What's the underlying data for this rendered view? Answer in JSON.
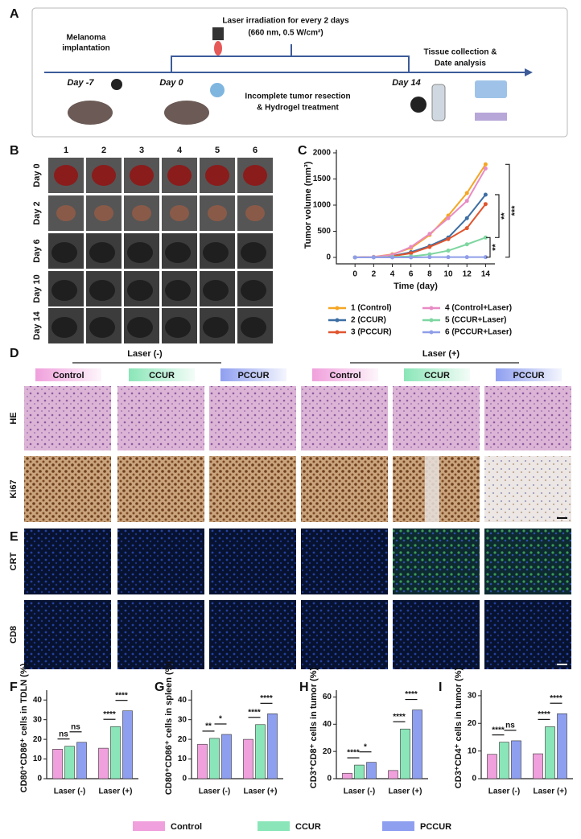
{
  "panel_labels": [
    "A",
    "B",
    "C",
    "D",
    "E",
    "F",
    "G",
    "H",
    "I"
  ],
  "timeline": {
    "laser_note": [
      "Laser irradiation for every 2 days",
      "(660 nm, 0.5 W/cm²)"
    ],
    "implant": [
      "Melanoma",
      "implantation"
    ],
    "days": [
      "Day -7",
      "Day 0",
      "Day 14"
    ],
    "treatment": [
      "Incomplete tumor resection",
      "& Hydrogel treatment"
    ],
    "analysis": [
      "Tissue collection &",
      "Date analysis"
    ]
  },
  "panel_b": {
    "columns": [
      "1",
      "2",
      "3",
      "4",
      "5",
      "6"
    ],
    "rows": [
      "Day 0",
      "Day 2",
      "Day 6",
      "Day 10",
      "Day 14"
    ]
  },
  "panel_d": {
    "groups": [
      "Laser (-)",
      "Laser (+)"
    ],
    "headers": [
      "Control",
      "CCUR",
      "PCCUR",
      "Control",
      "CCUR",
      "PCCUR"
    ],
    "rows": [
      "HE",
      "Ki67"
    ]
  },
  "panel_e": {
    "rows": [
      "CRT",
      "CD8"
    ]
  },
  "legend": [
    {
      "name": "Control",
      "color": "#f0a0dc"
    },
    {
      "name": "CCUR",
      "color": "#8ae6b8"
    },
    {
      "name": "PCCUR",
      "color": "#8f9ff0"
    }
  ],
  "chart_data": [
    {
      "type": "line",
      "y_label": "Tumor volume (mm³)",
      "x_label": "Time (day)",
      "x": [
        0,
        2,
        4,
        6,
        8,
        10,
        12,
        14
      ],
      "series": [
        {
          "name": "1 (Control)",
          "color": "#f5a623",
          "values": [
            0,
            10,
            60,
            180,
            430,
            800,
            1230,
            1780
          ]
        },
        {
          "name": "2 (CCUR)",
          "color": "#3d6fa3",
          "values": [
            0,
            5,
            30,
            100,
            220,
            380,
            750,
            1200
          ]
        },
        {
          "name": "3 (PCCUR)",
          "color": "#e0552e",
          "values": [
            0,
            5,
            25,
            80,
            200,
            350,
            560,
            1020
          ]
        },
        {
          "name": "4 (Control+Laser)",
          "color": "#e88bc4",
          "values": [
            0,
            10,
            50,
            200,
            450,
            750,
            1080,
            1700
          ]
        },
        {
          "name": "5 (CCUR+Laser)",
          "color": "#7ed6a0",
          "values": [
            0,
            2,
            10,
            20,
            60,
            130,
            250,
            380
          ]
        },
        {
          "name": "6 (PCCUR+Laser)",
          "color": "#8f9ee8",
          "values": [
            0,
            0,
            0,
            0,
            5,
            5,
            5,
            5
          ]
        }
      ],
      "xlim": [
        -2,
        15
      ],
      "ylim": [
        0,
        2000
      ],
      "xticks": [
        0,
        2,
        4,
        6,
        8,
        10,
        12,
        14
      ],
      "yticks": [
        0,
        500,
        1000,
        1500,
        2000
      ],
      "annotations": [
        "***",
        "**",
        "**"
      ]
    },
    {
      "type": "bar",
      "y_label": "CD80⁺CD86⁺ cells in TDLN (%)",
      "categories": [
        "Laser (-)",
        "Laser (+)"
      ],
      "series": [
        {
          "values": [
            15,
            15.5
          ]
        },
        {
          "values": [
            16.5,
            26.5
          ]
        },
        {
          "values": [
            18.5,
            34.5
          ]
        }
      ],
      "ylim": [
        0,
        45
      ],
      "yticks": [
        0,
        10,
        20,
        30,
        40
      ],
      "significance": [
        [
          "ns",
          "ns"
        ],
        [
          "****",
          "****"
        ]
      ]
    },
    {
      "type": "bar",
      "y_label": "CD80⁺CD86⁺ cells in spleen (%)",
      "categories": [
        "Laser (-)",
        "Laser (+)"
      ],
      "series": [
        {
          "values": [
            17.5,
            20
          ]
        },
        {
          "values": [
            20.5,
            27.5
          ]
        },
        {
          "values": [
            22.5,
            33
          ]
        }
      ],
      "ylim": [
        0,
        45
      ],
      "yticks": [
        0,
        10,
        20,
        30,
        40
      ],
      "significance": [
        [
          "**",
          "*"
        ],
        [
          "****",
          "****"
        ]
      ]
    },
    {
      "type": "bar",
      "y_label": "CD3⁺CD8⁺ cells in tumor (%)",
      "categories": [
        "Laser (-)",
        "Laser (+)"
      ],
      "series": [
        {
          "values": [
            4,
            6
          ]
        },
        {
          "values": [
            10,
            36.5
          ]
        },
        {
          "values": [
            12,
            50.5
          ]
        }
      ],
      "ylim": [
        0,
        65
      ],
      "yticks": [
        0,
        20,
        40,
        60
      ],
      "significance": [
        [
          "****",
          "*"
        ],
        [
          "****",
          "****"
        ]
      ]
    },
    {
      "type": "bar",
      "y_label": "CD3⁺CD4⁺ cells in tumor (%)",
      "categories": [
        "Laser (-)",
        "Laser (+)"
      ],
      "series": [
        {
          "values": [
            8.8,
            9
          ]
        },
        {
          "values": [
            13.2,
            18.8
          ]
        },
        {
          "values": [
            13.7,
            23.5
          ]
        }
      ],
      "ylim": [
        0,
        32
      ],
      "yticks": [
        0,
        10,
        20,
        30
      ],
      "significance": [
        [
          "****",
          "ns"
        ],
        [
          "****",
          "****"
        ]
      ]
    }
  ]
}
